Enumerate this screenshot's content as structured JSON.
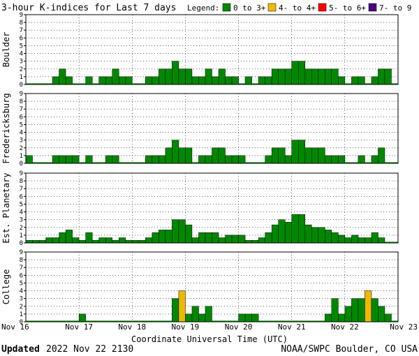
{
  "title": "3-hour K-indices for Last 7 days",
  "legend": {
    "label": "Legend:",
    "items": [
      {
        "label": "0 to 3+",
        "color": "#008800"
      },
      {
        "label": "4- to 4+",
        "color": "#f0b800"
      },
      {
        "label": "5- to 6+",
        "color": "#ff0000"
      },
      {
        "label": "7- to 9",
        "color": "#4b0082"
      }
    ]
  },
  "footer": {
    "updated_label": "Updated",
    "updated_value": "2022 Nov 22 2130",
    "source": "NOAA/SWPC Boulder, CO USA"
  },
  "chart_data": {
    "type": "bar",
    "xlabel": "Coordinate Universal Time (UTC)",
    "x_tick_labels": [
      "Nov 16",
      "Nov 17",
      "Nov 18",
      "Nov 19",
      "Nov 20",
      "Nov 21",
      "Nov 22",
      "Nov 23"
    ],
    "ylim": [
      0,
      9
    ],
    "y_ticks": [
      0,
      1,
      2,
      3,
      4,
      5,
      6,
      7,
      8,
      9
    ],
    "bars_per_day": 8,
    "color_thresholds": {
      "green_max": 3.99,
      "yellow_max": 4.99,
      "red_max": 6.99
    },
    "grid": "dotted",
    "panels": [
      {
        "name": "Boulder",
        "values": [
          0,
          0,
          0,
          0,
          1,
          2,
          1,
          0,
          0,
          1,
          0,
          1,
          1,
          2,
          1,
          1,
          0,
          0,
          1,
          1,
          2,
          2,
          3,
          2,
          2,
          1,
          1,
          2,
          1,
          2,
          1,
          1,
          0,
          1,
          0,
          1,
          1,
          2,
          2,
          2,
          3,
          3,
          2,
          2,
          2,
          2,
          2,
          1,
          0,
          1,
          1,
          0,
          1,
          2,
          2,
          0
        ]
      },
      {
        "name": "Fredericksburg",
        "values": [
          1,
          0,
          0,
          0,
          1,
          1,
          1,
          1,
          0,
          1,
          0,
          0,
          1,
          1,
          0,
          0,
          0,
          0,
          1,
          1,
          1,
          2,
          3,
          2,
          2,
          0,
          1,
          1,
          2,
          2,
          1,
          1,
          1,
          0,
          0,
          0,
          1,
          2,
          2,
          1,
          3,
          3,
          2,
          2,
          2,
          1,
          1,
          1,
          0,
          0,
          1,
          0,
          1,
          2,
          0,
          0
        ]
      },
      {
        "name": "Est. Planetary",
        "values": [
          0.33,
          0.33,
          0.33,
          0.67,
          0.67,
          1.33,
          1.67,
          0.67,
          0.33,
          1.33,
          0.33,
          0.67,
          0.67,
          0.33,
          0.67,
          0.33,
          0.33,
          0.33,
          0.67,
          1.33,
          1.67,
          1.67,
          3,
          3,
          2.33,
          0.67,
          1.33,
          1.33,
          1.33,
          0.67,
          1,
          1,
          1,
          0.33,
          0.33,
          0.67,
          1.33,
          2.33,
          3,
          2.67,
          3.67,
          3.67,
          2.33,
          2,
          2,
          1.67,
          1.33,
          1,
          0.67,
          1,
          0.67,
          0.67,
          1.33,
          0.67,
          0,
          0
        ]
      },
      {
        "name": "College",
        "values": [
          0,
          0,
          0,
          0,
          0,
          0,
          0,
          0,
          1,
          0,
          0,
          0,
          0,
          0,
          0,
          0,
          0,
          0,
          0,
          0,
          0,
          0,
          3,
          4,
          1,
          2,
          1,
          2,
          0,
          0,
          0,
          0,
          1,
          1,
          1,
          0,
          0,
          0,
          0,
          0,
          0,
          0,
          0,
          0,
          0,
          1,
          3,
          1,
          2,
          3,
          3,
          4,
          3,
          2,
          1,
          0
        ]
      }
    ]
  }
}
